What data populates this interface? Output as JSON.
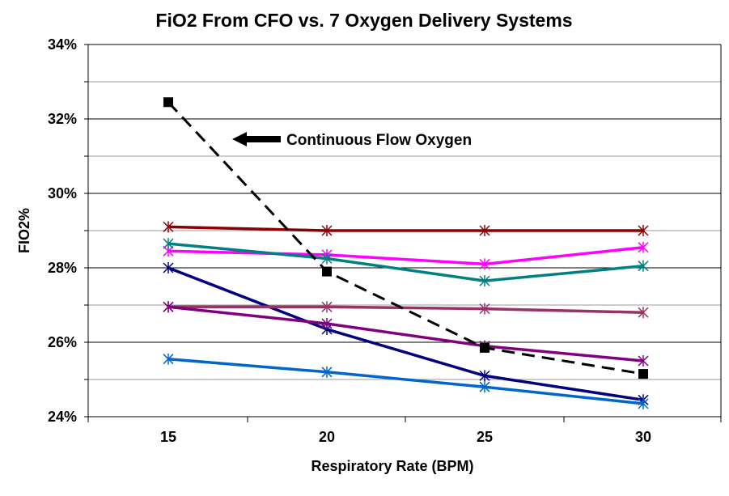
{
  "chart_data": {
    "type": "line",
    "title": "FiO2 From CFO vs. 7 Oxygen Delivery Systems",
    "xlabel": "Respiratory Rate (BPM)",
    "ylabel": "FIO2%",
    "x": [
      15,
      20,
      25,
      30
    ],
    "x_tick_labels": [
      "15",
      "20",
      "25",
      "30"
    ],
    "ylim": [
      0.24,
      0.34
    ],
    "y_ticks": [
      0.24,
      0.26,
      0.28,
      0.3,
      0.32,
      0.34
    ],
    "y_tick_labels": [
      "24%",
      "26%",
      "28%",
      "30%",
      "32%",
      "34%"
    ],
    "grid": true,
    "legend": "none",
    "annotation": "Continuous Flow Oxygen",
    "series": [
      {
        "color": "#8B0000",
        "dash": false,
        "marker": "star",
        "values": [
          0.291,
          0.29,
          0.29,
          0.29
        ]
      },
      {
        "color": "#FF00FF",
        "dash": false,
        "marker": "star",
        "values": [
          0.2845,
          0.2835,
          0.281,
          0.2855
        ]
      },
      {
        "color": "#008080",
        "dash": false,
        "marker": "star",
        "values": [
          0.2865,
          0.2825,
          0.2765,
          0.2805
        ]
      },
      {
        "color": "#000080",
        "dash": false,
        "marker": "star",
        "values": [
          0.28,
          0.2635,
          0.251,
          0.2445
        ]
      },
      {
        "color": "#993366",
        "dash": false,
        "marker": "star",
        "values": [
          0.2695,
          0.2695,
          0.269,
          0.268
        ]
      },
      {
        "color": "#800080",
        "dash": false,
        "marker": "star",
        "values": [
          0.2695,
          0.265,
          0.259,
          0.255
        ]
      },
      {
        "color": "#0066CC",
        "dash": false,
        "marker": "star",
        "values": [
          0.2555,
          0.252,
          0.248,
          0.2435
        ]
      },
      {
        "color": "#000000",
        "dash": true,
        "marker": "square",
        "values": [
          0.3245,
          0.279,
          0.2585,
          0.2515
        ]
      }
    ]
  }
}
